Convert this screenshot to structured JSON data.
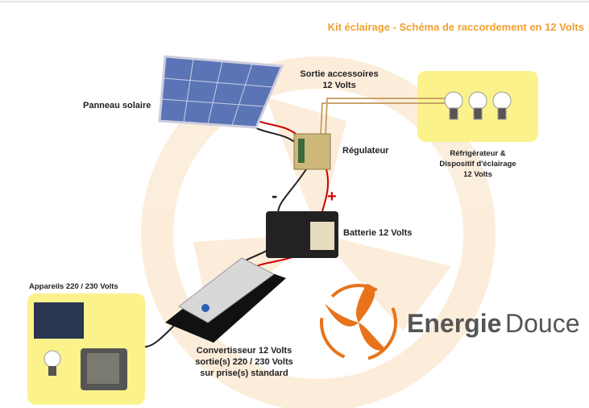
{
  "header": {
    "title": "Kit éclairage - Schéma de raccordement en 12 Volts"
  },
  "nodes": {
    "panel": {
      "label": "Panneau solaire"
    },
    "accessories": {
      "lines": [
        "Sortie accessoires",
        "12 Volts"
      ]
    },
    "regulator": {
      "label": "Régulateur"
    },
    "fridge": {
      "lines": [
        "Réfrigérateur &",
        "Dispositif d'éclairage",
        "12 Volts"
      ]
    },
    "battery": {
      "label": "Batterie 12 Volts",
      "minus": "-",
      "plus": "+"
    },
    "appliances": {
      "label": "Appareils 220 / 230 Volts"
    },
    "converter": {
      "lines": [
        "Convertisseur 12 Volts",
        "sortie(s) 220 / 230 Volts",
        "sur prise(s) standard"
      ]
    }
  },
  "logo": {
    "word1": "Energie",
    "word2": "Douce"
  }
}
